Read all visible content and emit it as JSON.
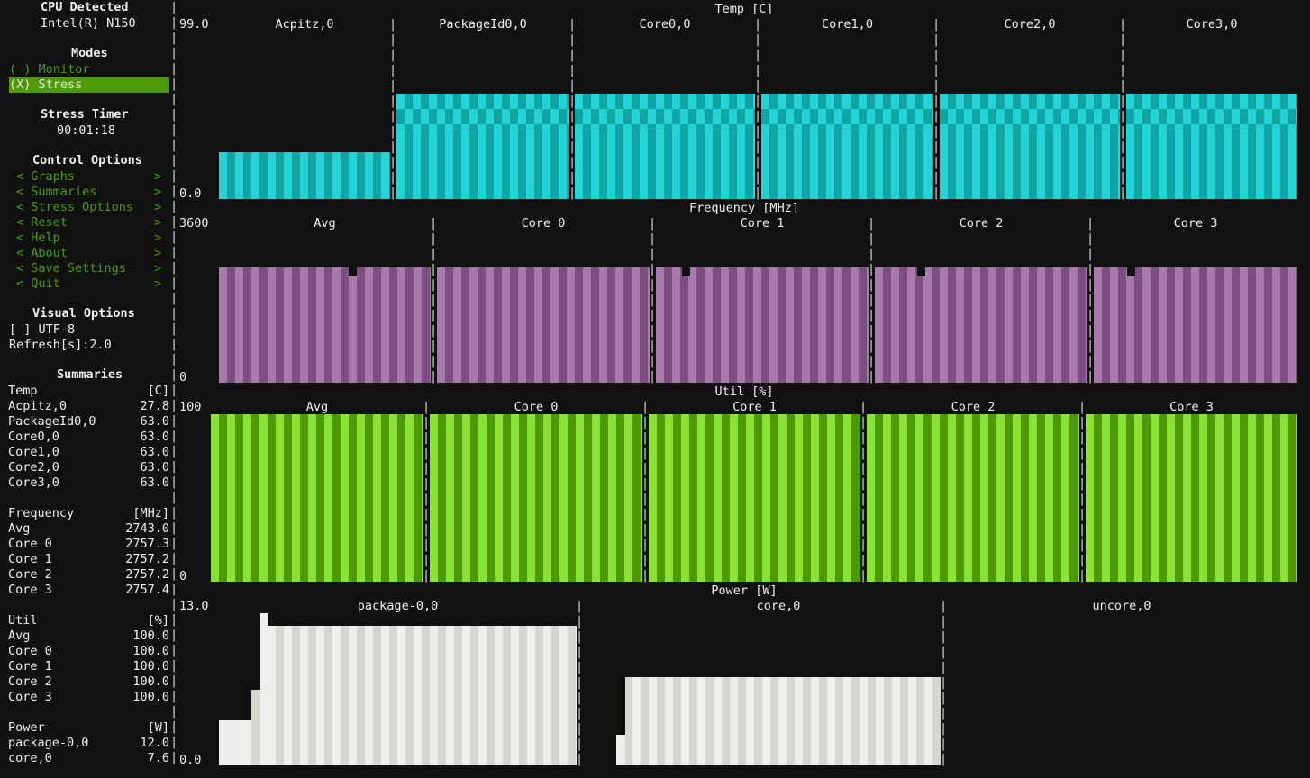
{
  "sidebar": {
    "cpu_title": "CPU Detected",
    "cpu_name": "Intel(R) N150",
    "modes_title": "Modes",
    "modes": [
      {
        "label": "( ) Monitor",
        "selected": false
      },
      {
        "label": "(X) Stress",
        "selected": true
      }
    ],
    "stress_timer_title": "Stress Timer",
    "stress_timer": "00:01:18",
    "control_title": "Control Options",
    "control_items": [
      {
        "label": "Graphs"
      },
      {
        "label": "Summaries"
      },
      {
        "label": "Stress Options"
      },
      {
        "label": "Reset"
      },
      {
        "label": "Help"
      },
      {
        "label": "About"
      },
      {
        "label": "Save Settings"
      },
      {
        "label": "Quit"
      }
    ],
    "visual_title": "Visual Options",
    "utf8_label": "[ ] UTF-8",
    "refresh_label": "Refresh[s]:2.0",
    "summaries_title": "Summaries",
    "summaries": [
      {
        "header": [
          "Temp",
          "[C]"
        ],
        "rows": [
          [
            "Acpitz,0",
            "27.8"
          ],
          [
            "PackageId0,0",
            "63.0"
          ],
          [
            "Core0,0",
            "63.0"
          ],
          [
            "Core1,0",
            "63.0"
          ],
          [
            "Core2,0",
            "63.0"
          ],
          [
            "Core3,0",
            "63.0"
          ]
        ]
      },
      {
        "header": [
          "Frequency",
          "[MHz]"
        ],
        "rows": [
          [
            "Avg",
            "2743.0"
          ],
          [
            "Core 0",
            "2757.3"
          ],
          [
            "Core 1",
            "2757.2"
          ],
          [
            "Core 2",
            "2757.2"
          ],
          [
            "Core 3",
            "2757.4"
          ]
        ]
      },
      {
        "header": [
          "Util",
          "[%]"
        ],
        "rows": [
          [
            "Avg",
            "100.0"
          ],
          [
            "Core 0",
            "100.0"
          ],
          [
            "Core 1",
            "100.0"
          ],
          [
            "Core 2",
            "100.0"
          ],
          [
            "Core 3",
            "100.0"
          ]
        ]
      },
      {
        "header": [
          "Power",
          "[W]"
        ],
        "rows": [
          [
            "package-0,0",
            "12.0"
          ],
          [
            "core,0",
            "7.6"
          ]
        ]
      }
    ]
  },
  "graphs": {
    "temp": {
      "title": "Temp [C]",
      "ymax": "99.0",
      "ymin": "0.0",
      "colors": [
        "#24d3d3",
        "#10a4a4"
      ],
      "panels": [
        "Acpitz,0",
        "PackageId0,0",
        "Core0,0",
        "Core1,0",
        "Core2,0",
        "Core3,0"
      ],
      "levels": [
        0.28,
        0.63,
        0.63,
        0.63,
        0.63,
        0.63
      ]
    },
    "freq": {
      "title": "Frequency [MHz]",
      "ymax": "3600",
      "ymin": "0",
      "colors": [
        "#a87aab",
        "#7b4f82"
      ],
      "panels": [
        "Avg",
        "Core 0",
        "Core 1",
        "Core 2",
        "Core 3"
      ],
      "levels": [
        0.76,
        0.76,
        0.76,
        0.76,
        0.76
      ]
    },
    "util": {
      "title": "Util [%]",
      "ymax": "100",
      "ymin": "0",
      "colors": [
        "#8ae234",
        "#4e9a06"
      ],
      "panels": [
        "Avg",
        "Core 0",
        "Core 1",
        "Core 2",
        "Core 3"
      ],
      "levels": [
        1.0,
        1.0,
        1.0,
        1.0,
        1.0
      ]
    },
    "power": {
      "title": "Power [W]",
      "ymax": "13.0",
      "ymin": "0.0",
      "colors": [
        "#eeeeec",
        "#d3d7cf"
      ],
      "panels": [
        "package-0,0",
        "core,0",
        "uncore,0"
      ],
      "levels": [
        0.92,
        0.58,
        0.0
      ]
    }
  }
}
